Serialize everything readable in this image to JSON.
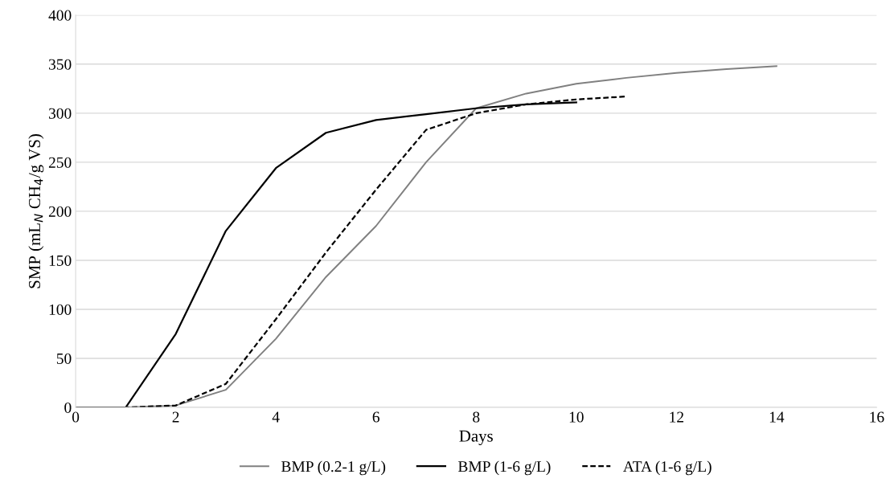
{
  "chart_data": {
    "type": "line",
    "xlabel": "Days",
    "ylabel": "SMP (mL$_{N}$ CH$_{4}$/g VS)",
    "xlim": [
      0,
      16
    ],
    "xticks": [
      0,
      2,
      4,
      6,
      8,
      10,
      12,
      14,
      16
    ],
    "ylim": [
      0,
      400
    ],
    "yticks": [
      0,
      50,
      100,
      150,
      200,
      250,
      300,
      350,
      400
    ],
    "grid": "y",
    "legend": "bottom",
    "marker": "none",
    "series": [
      {
        "name": "BMP (0.2-1 g/L)",
        "color": "#808080",
        "line_style": "solid",
        "x": [
          0,
          1,
          2,
          3,
          4,
          5,
          6,
          7,
          8,
          9,
          10,
          11,
          12,
          13,
          14
        ],
        "values": [
          0,
          0,
          2,
          18,
          70,
          133,
          185,
          250,
          305,
          320,
          330,
          336,
          341,
          345,
          348
        ]
      },
      {
        "name": "BMP (1-6 g/L)",
        "color": "#000000",
        "line_style": "solid",
        "x": [
          0,
          1,
          2,
          3,
          4,
          5,
          6,
          7,
          8,
          9,
          10
        ],
        "values": [
          0,
          0,
          75,
          180,
          244,
          280,
          293,
          299,
          305,
          309,
          311
        ]
      },
      {
        "name": "ATA (1-6 g/L)",
        "color": "#000000",
        "line_style": "dashed",
        "x": [
          0,
          1,
          2,
          3,
          4,
          5,
          6,
          7,
          8,
          9,
          10,
          11
        ],
        "values": [
          0,
          0,
          2,
          24,
          90,
          158,
          222,
          283,
          300,
          309,
          314,
          317
        ]
      }
    ]
  }
}
